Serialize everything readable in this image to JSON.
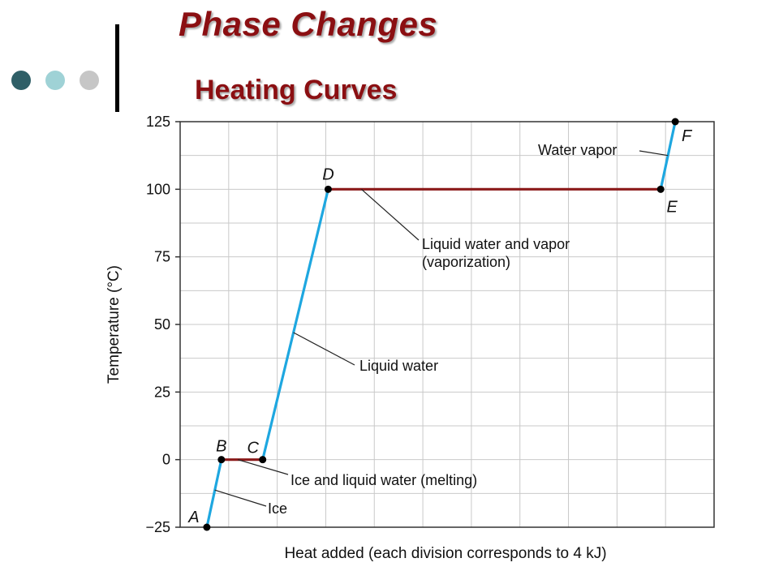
{
  "slide": {
    "title": "Phase Changes",
    "subtitle": "Heating Curves",
    "bullet_colors": [
      "#2f5f67",
      "#9fd2d6",
      "#c6c6c6"
    ],
    "title_color": "#8b0f12"
  },
  "chart_data": {
    "type": "line",
    "xlabel": "Heat added (each division corresponds to 4 kJ)",
    "ylabel": "Temperature (°C)",
    "ylim": [
      -25,
      125
    ],
    "yticks": [
      -25,
      0,
      25,
      50,
      75,
      100,
      125
    ],
    "xlim": [
      0,
      11
    ],
    "x_divisions": 11,
    "grid": true,
    "points": [
      {
        "label": "A",
        "x": 0.55,
        "y": -25
      },
      {
        "label": "B",
        "x": 0.85,
        "y": 0
      },
      {
        "label": "C",
        "x": 1.7,
        "y": 0
      },
      {
        "label": "D",
        "x": 3.05,
        "y": 100
      },
      {
        "label": "E",
        "x": 9.9,
        "y": 100
      },
      {
        "label": "F",
        "x": 10.2,
        "y": 125
      }
    ],
    "segments": [
      {
        "from": "A",
        "to": "B",
        "phase": "solid",
        "annotation": "Ice",
        "color": "#1ea7e0"
      },
      {
        "from": "B",
        "to": "C",
        "phase": "transition",
        "annotation": "Ice and liquid water (melting)",
        "color": "#8b1a1a"
      },
      {
        "from": "C",
        "to": "D",
        "phase": "liquid",
        "annotation": "Liquid water",
        "color": "#1ea7e0"
      },
      {
        "from": "D",
        "to": "E",
        "phase": "transition",
        "annotation": "Liquid water and vapor\n(vaporization)",
        "color": "#8b1a1a"
      },
      {
        "from": "E",
        "to": "F",
        "phase": "gas",
        "annotation": "Water vapor",
        "color": "#1ea7e0"
      }
    ]
  }
}
